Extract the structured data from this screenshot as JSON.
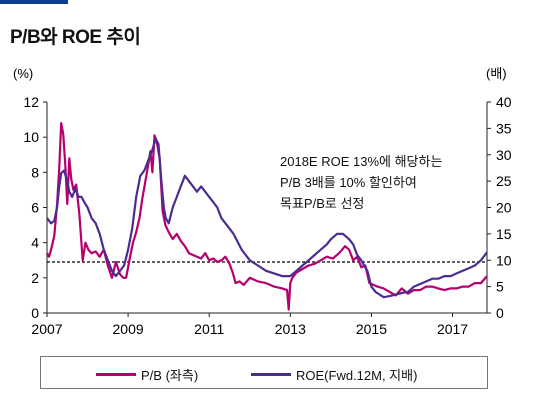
{
  "title": "P/B와 ROE 추이",
  "chart_data": {
    "type": "line",
    "title": "P/B와 ROE 추이",
    "left_axis": {
      "unit_label": "(%)",
      "min": 0,
      "max": 12,
      "ticks": [
        0,
        2,
        4,
        6,
        8,
        10,
        12
      ]
    },
    "right_axis": {
      "unit_label": "(배)",
      "min": 0,
      "max": 40,
      "ticks": [
        0,
        5,
        10,
        15,
        20,
        25,
        30,
        35,
        40
      ]
    },
    "x_axis": {
      "min": 2007,
      "max": 2017.85,
      "tick_labels": [
        "2007",
        "2009",
        "2011",
        "2013",
        "2015",
        "2017"
      ],
      "ticks": [
        2007,
        2009,
        2011,
        2013,
        2015,
        2017
      ]
    },
    "reference_line": {
      "axis": "left",
      "value": 2.9,
      "style": "dashed"
    },
    "annotation": [
      "2018E ROE 13%에 해당하는",
      "P/B 3배를  10%  할인하여",
      "목표P/B로 선정"
    ],
    "series": [
      {
        "name": "P/B (좌측)",
        "axis": "left",
        "color": "#b5006e",
        "x": [
          2007.0,
          2007.05,
          2007.1,
          2007.18,
          2007.25,
          2007.3,
          2007.35,
          2007.4,
          2007.45,
          2007.5,
          2007.55,
          2007.6,
          2007.65,
          2007.72,
          2007.8,
          2007.88,
          2007.95,
          2008.02,
          2008.1,
          2008.2,
          2008.3,
          2008.4,
          2008.5,
          2008.6,
          2008.7,
          2008.8,
          2008.88,
          2008.95,
          2009.05,
          2009.12,
          2009.2,
          2009.28,
          2009.35,
          2009.42,
          2009.5,
          2009.55,
          2009.6,
          2009.65,
          2009.7,
          2009.78,
          2009.85,
          2009.92,
          2010.0,
          2010.1,
          2010.2,
          2010.3,
          2010.4,
          2010.5,
          2010.6,
          2010.7,
          2010.8,
          2010.9,
          2011.0,
          2011.1,
          2011.2,
          2011.3,
          2011.4,
          2011.5,
          2011.58,
          2011.65,
          2011.75,
          2011.85,
          2012.0,
          2012.2,
          2012.4,
          2012.6,
          2012.8,
          2012.92,
          2012.96,
          2013.0,
          2013.05,
          2013.15,
          2013.3,
          2013.45,
          2013.6,
          2013.75,
          2013.9,
          2014.05,
          2014.2,
          2014.35,
          2014.45,
          2014.55,
          2014.65,
          2014.75,
          2014.85,
          2014.95,
          2015.05,
          2015.15,
          2015.3,
          2015.45,
          2015.6,
          2015.75,
          2015.9,
          2016.05,
          2016.2,
          2016.35,
          2016.5,
          2016.65,
          2016.8,
          2016.95,
          2017.1,
          2017.25,
          2017.4,
          2017.55,
          2017.7,
          2017.85
        ],
        "values": [
          3.4,
          3.2,
          3.6,
          4.4,
          6.2,
          8.2,
          10.8,
          10.2,
          8.5,
          6.2,
          8.8,
          7.6,
          7.0,
          7.3,
          5.6,
          3.0,
          4.0,
          3.6,
          3.4,
          3.5,
          3.2,
          3.6,
          2.7,
          2.0,
          2.9,
          2.2,
          2.0,
          2.0,
          3.2,
          4.0,
          4.6,
          5.4,
          6.5,
          7.4,
          8.5,
          9.2,
          8.0,
          10.1,
          9.8,
          8.8,
          5.8,
          5.0,
          4.6,
          4.2,
          4.5,
          4.1,
          3.8,
          3.4,
          3.3,
          3.2,
          3.1,
          3.4,
          3.0,
          3.1,
          2.9,
          3.0,
          3.2,
          2.8,
          2.3,
          1.7,
          1.8,
          1.6,
          2.0,
          1.8,
          1.7,
          1.5,
          1.4,
          1.3,
          0.2,
          1.7,
          2.0,
          2.3,
          2.5,
          2.7,
          2.8,
          3.0,
          3.2,
          3.1,
          3.4,
          3.8,
          3.6,
          3.0,
          3.2,
          2.6,
          2.7,
          1.7,
          1.6,
          1.5,
          1.4,
          1.2,
          1.0,
          1.4,
          1.1,
          1.3,
          1.3,
          1.5,
          1.5,
          1.4,
          1.3,
          1.4,
          1.4,
          1.5,
          1.5,
          1.7,
          1.7,
          2.1
        ]
      },
      {
        "name": "ROE(Fwd.12M, 지배)",
        "axis": "right",
        "color": "#4b2c91",
        "x": [
          2007.0,
          2007.05,
          2007.1,
          2007.18,
          2007.25,
          2007.3,
          2007.35,
          2007.42,
          2007.5,
          2007.55,
          2007.62,
          2007.7,
          2007.78,
          2007.85,
          2007.92,
          2008.0,
          2008.1,
          2008.2,
          2008.3,
          2008.4,
          2008.5,
          2008.6,
          2008.7,
          2008.8,
          2008.9,
          2009.0,
          2009.1,
          2009.2,
          2009.3,
          2009.4,
          2009.5,
          2009.6,
          2009.68,
          2009.75,
          2009.82,
          2009.88,
          2009.93,
          2010.0,
          2010.1,
          2010.2,
          2010.3,
          2010.4,
          2010.5,
          2010.6,
          2010.7,
          2010.8,
          2010.9,
          2011.0,
          2011.1,
          2011.2,
          2011.3,
          2011.4,
          2011.5,
          2011.6,
          2011.7,
          2011.8,
          2011.9,
          2012.0,
          2012.2,
          2012.4,
          2012.6,
          2012.8,
          2013.0,
          2013.15,
          2013.3,
          2013.45,
          2013.6,
          2013.75,
          2013.9,
          2014.0,
          2014.15,
          2014.3,
          2014.45,
          2014.55,
          2014.65,
          2014.75,
          2014.82,
          2014.9,
          2015.0,
          2015.1,
          2015.2,
          2015.3,
          2015.45,
          2015.6,
          2015.75,
          2015.9,
          2016.05,
          2016.2,
          2016.35,
          2016.5,
          2016.65,
          2016.8,
          2016.95,
          2017.1,
          2017.25,
          2017.4,
          2017.55,
          2017.7,
          2017.85
        ],
        "values": [
          18,
          17.5,
          17,
          17.5,
          20,
          24,
          26.5,
          27,
          25,
          23,
          22,
          23.5,
          22,
          22,
          21,
          20,
          18,
          17,
          15,
          12,
          10,
          8,
          7,
          8,
          9,
          12,
          16,
          22,
          26,
          27,
          29,
          31,
          33,
          32,
          25,
          20,
          18,
          17,
          20,
          22,
          24,
          26,
          25,
          24,
          23,
          24,
          23,
          22,
          21,
          20,
          18,
          17,
          16,
          15,
          13.5,
          12,
          11,
          10,
          9,
          8,
          7.5,
          7,
          7,
          8,
          9,
          10,
          11,
          12,
          13,
          14,
          15,
          15,
          14,
          13,
          11,
          10,
          9,
          8,
          5,
          4,
          3.5,
          3,
          3.2,
          3.5,
          3.8,
          4,
          5,
          5.5,
          6,
          6.5,
          6.5,
          7,
          7,
          7.5,
          8,
          8.5,
          9,
          10,
          11.5
        ]
      }
    ]
  }
}
